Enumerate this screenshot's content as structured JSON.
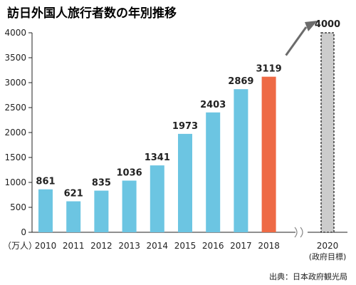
{
  "chart_data": {
    "type": "bar",
    "title": "訪日外国人旅行者数の年別推移",
    "ylabel": "（万人）",
    "ylim": [
      0,
      4000
    ],
    "yticks": [
      "0",
      "500",
      "1000",
      "1500",
      "2000",
      "2500",
      "3000",
      "3500",
      "4000"
    ],
    "categories": [
      "2010",
      "2011",
      "2012",
      "2013",
      "2014",
      "2015",
      "2016",
      "2017",
      "2018"
    ],
    "values": [
      861,
      621,
      835,
      1036,
      1341,
      1973,
      2403,
      2869,
      3119
    ],
    "highlight_index": 8,
    "target": {
      "category": "2020",
      "sublabel": "(政府目標)",
      "value": 4000
    },
    "source": "出典：日本政府観光局",
    "colors": {
      "bar": "#6cc5e2",
      "highlight": "#ee6a45",
      "target": "#cccccc",
      "arrow": "#6b6b6b"
    }
  }
}
